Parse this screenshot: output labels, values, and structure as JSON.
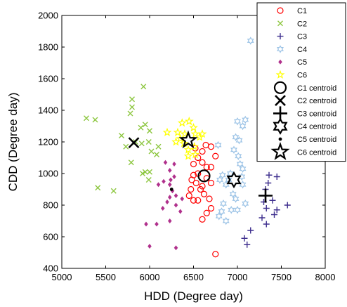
{
  "chart_data": {
    "type": "scatter",
    "title": "",
    "xlabel": "HDD (Degree day)",
    "ylabel": "CDD (Degree day)",
    "xlim": [
      5000,
      8000
    ],
    "ylim": [
      400,
      2000
    ],
    "xticks": [
      5000,
      5500,
      6000,
      6500,
      7000,
      7500,
      8000
    ],
    "yticks": [
      400,
      600,
      800,
      1000,
      1200,
      1400,
      1600,
      1800,
      2000
    ],
    "grid": false,
    "legend_position": "top-right",
    "series": [
      {
        "name": "C1",
        "marker": "circle",
        "color": "#ff0000",
        "points": [
          [
            6520,
            1160
          ],
          [
            6550,
            1100
          ],
          [
            6600,
            1140
          ],
          [
            6640,
            1180
          ],
          [
            6700,
            1170
          ],
          [
            6750,
            1110
          ],
          [
            6600,
            1070
          ],
          [
            6650,
            1040
          ],
          [
            6500,
            1060
          ],
          [
            6700,
            1040
          ],
          [
            6550,
            1000
          ],
          [
            6650,
            970
          ],
          [
            6500,
            990
          ],
          [
            6700,
            940
          ],
          [
            6600,
            920
          ],
          [
            6580,
            900
          ],
          [
            6480,
            960
          ],
          [
            6530,
            940
          ],
          [
            6470,
            900
          ],
          [
            6450,
            860
          ],
          [
            6500,
            830
          ],
          [
            6620,
            870
          ],
          [
            6680,
            840
          ],
          [
            6700,
            780
          ],
          [
            6650,
            750
          ],
          [
            6550,
            830
          ],
          [
            6600,
            710
          ],
          [
            6750,
            490
          ]
        ]
      },
      {
        "name": "C2",
        "marker": "x",
        "color": "#8cc63f",
        "points": [
          [
            5280,
            1350
          ],
          [
            5380,
            1340
          ],
          [
            5780,
            1380
          ],
          [
            5800,
            1420
          ],
          [
            5800,
            1470
          ],
          [
            5930,
            1550
          ],
          [
            5900,
            1290
          ],
          [
            5950,
            1310
          ],
          [
            6000,
            1270
          ],
          [
            5680,
            1240
          ],
          [
            5840,
            1200
          ],
          [
            5790,
            1070
          ],
          [
            5910,
            1190
          ],
          [
            5990,
            1200
          ],
          [
            6020,
            1140
          ],
          [
            6100,
            1170
          ],
          [
            6080,
            1120
          ],
          [
            5950,
            1010
          ],
          [
            6000,
            1010
          ],
          [
            5920,
            1000
          ],
          [
            5990,
            960
          ],
          [
            5410,
            910
          ],
          [
            5590,
            890
          ],
          [
            5730,
            1170
          ]
        ]
      },
      {
        "name": "C3",
        "marker": "plus",
        "color": "#3e2f8e",
        "points": [
          [
            7320,
            900
          ],
          [
            7350,
            940
          ],
          [
            7360,
            990
          ],
          [
            7450,
            980
          ],
          [
            7300,
            820
          ],
          [
            7400,
            830
          ],
          [
            7330,
            780
          ],
          [
            7450,
            770
          ],
          [
            7570,
            800
          ],
          [
            7420,
            740
          ],
          [
            7280,
            720
          ],
          [
            7330,
            680
          ],
          [
            7150,
            640
          ],
          [
            7080,
            590
          ],
          [
            7110,
            550
          ]
        ]
      },
      {
        "name": "C4",
        "marker": "hexagram",
        "color": "#9cc3e6",
        "points": [
          [
            7150,
            1840
          ],
          [
            7000,
            1330
          ],
          [
            7060,
            1300
          ],
          [
            7090,
            1340
          ],
          [
            6980,
            1230
          ],
          [
            7020,
            1210
          ],
          [
            6960,
            1150
          ],
          [
            7010,
            1110
          ],
          [
            6780,
            1180
          ],
          [
            6920,
            1000
          ],
          [
            7030,
            1060
          ],
          [
            7060,
            1030
          ],
          [
            7050,
            980
          ],
          [
            7060,
            930
          ],
          [
            6900,
            960
          ],
          [
            6870,
            930
          ],
          [
            6830,
            990
          ],
          [
            6800,
            960
          ],
          [
            6950,
            870
          ],
          [
            6980,
            840
          ],
          [
            7090,
            810
          ],
          [
            6840,
            810
          ],
          [
            6930,
            770
          ],
          [
            7000,
            770
          ],
          [
            6820,
            760
          ],
          [
            6790,
            730
          ],
          [
            6870,
            700
          ]
        ]
      },
      {
        "name": "C5",
        "marker": "diamond",
        "color": "#b0308c",
        "points": [
          [
            6180,
            1070
          ],
          [
            6280,
            1060
          ],
          [
            6230,
            1020
          ],
          [
            6240,
            960
          ],
          [
            6280,
            980
          ],
          [
            6160,
            950
          ],
          [
            6100,
            930
          ],
          [
            6230,
            930
          ],
          [
            6260,
            890
          ],
          [
            6300,
            860
          ],
          [
            6370,
            840
          ],
          [
            6230,
            850
          ],
          [
            6200,
            820
          ],
          [
            6300,
            800
          ],
          [
            6150,
            780
          ],
          [
            6350,
            760
          ],
          [
            6230,
            700
          ],
          [
            5960,
            680
          ],
          [
            6080,
            680
          ],
          [
            6300,
            530
          ],
          [
            6000,
            540
          ]
        ]
      },
      {
        "name": "C6",
        "marker": "pentagram",
        "color": "#ffff00",
        "points": [
          [
            6370,
            1320
          ],
          [
            6450,
            1330
          ],
          [
            6500,
            1290
          ],
          [
            6200,
            1260
          ],
          [
            6320,
            1260
          ],
          [
            6400,
            1250
          ],
          [
            6520,
            1250
          ],
          [
            6350,
            1220
          ],
          [
            6570,
            1230
          ],
          [
            6390,
            1190
          ],
          [
            6440,
            1150
          ],
          [
            6510,
            1170
          ],
          [
            6520,
            1120
          ],
          [
            6440,
            1110
          ],
          [
            6600,
            1250
          ],
          [
            6300,
            1200
          ]
        ]
      },
      {
        "name": "C1 centroid",
        "marker": "circle",
        "color": "#000000",
        "centroid": true,
        "points": [
          [
            6620,
            985
          ]
        ]
      },
      {
        "name": "C2 centroid",
        "marker": "x",
        "color": "#000000",
        "centroid": true,
        "points": [
          [
            5820,
            1195
          ]
        ]
      },
      {
        "name": "C3 centroid",
        "marker": "plus",
        "color": "#000000",
        "centroid": true,
        "points": [
          [
            7320,
            860
          ]
        ]
      },
      {
        "name": "C4 centroid",
        "marker": "hexagram",
        "color": "#000000",
        "centroid": true,
        "points": [
          [
            6960,
            960
          ]
        ]
      },
      {
        "name": "C5 centroid",
        "marker": "dot",
        "color": "#000000",
        "centroid": true,
        "points": [
          [
            6250,
            900
          ]
        ]
      },
      {
        "name": "C6 centroid",
        "marker": "pentagram",
        "color": "#000000",
        "centroid": true,
        "points": [
          [
            6440,
            1210
          ]
        ]
      }
    ]
  }
}
